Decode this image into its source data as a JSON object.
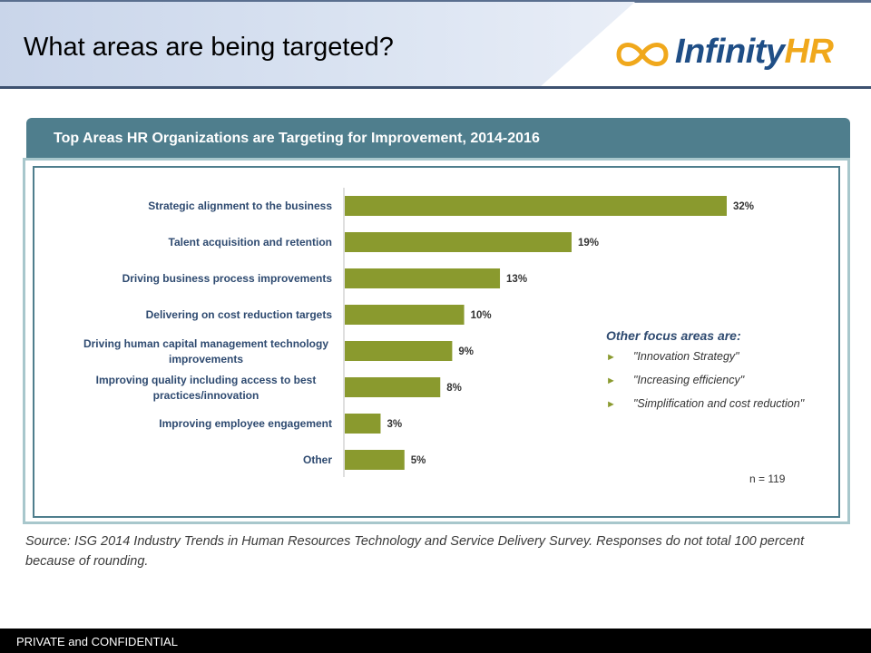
{
  "slide": {
    "title": "What areas are being targeted?"
  },
  "logo": {
    "text_main": "Infinity",
    "text_accent": "HR"
  },
  "chart_data": {
    "type": "bar",
    "orientation": "horizontal",
    "title": "Top Areas HR Organizations are Targeting for Improvement, 2014-2016",
    "categories": [
      "Strategic alignment to the business",
      "Talent acquisition and retention",
      "Driving business process improvements",
      "Delivering on cost reduction targets",
      "Driving human capital management technology improvements",
      "Improving quality including access to best practices/innovation",
      "Improving employee engagement",
      "Other"
    ],
    "category_lines": [
      [
        "Strategic alignment to the business"
      ],
      [
        "Talent acquisition and retention"
      ],
      [
        "Driving business process improvements"
      ],
      [
        "Delivering on cost reduction targets"
      ],
      [
        "Driving human capital management technology",
        "improvements"
      ],
      [
        "Improving quality including access to best",
        "practices/innovation"
      ],
      [
        "Improving employee engagement"
      ],
      [
        "Other"
      ]
    ],
    "values": [
      32,
      19,
      13,
      10,
      9,
      8,
      3,
      5
    ],
    "value_labels": [
      "32%",
      "19%",
      "13%",
      "10%",
      "9%",
      "8%",
      "3%",
      "5%"
    ],
    "xlim": [
      0,
      32
    ],
    "bar_color": "#8a9a2e",
    "grid": false,
    "note": "n = 119"
  },
  "other_focus": {
    "title": "Other focus areas are:",
    "items": [
      "\"Innovation Strategy\"",
      "\"Increasing efficiency\"",
      "\"Simplification and cost reduction\""
    ]
  },
  "source": "Source: ISG 2014 Industry Trends in Human Resources Technology and Service Delivery Survey. Responses do not total 100 percent because of rounding.",
  "footer": {
    "text": "PRIVATE and CONFIDENTIAL"
  }
}
